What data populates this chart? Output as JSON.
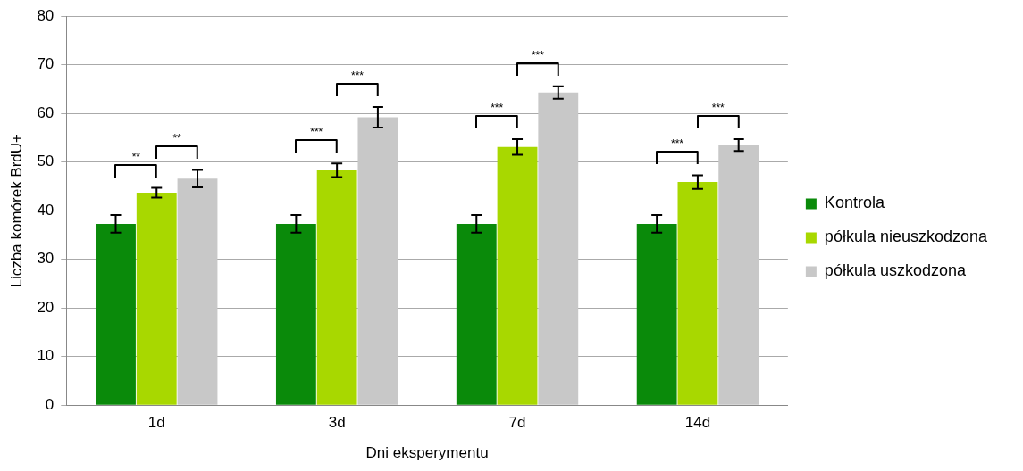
{
  "chart_data": {
    "type": "bar",
    "categories": [
      "1d",
      "3d",
      "7d",
      "14d"
    ],
    "series": [
      {
        "name": "Kontrola",
        "color": "#0a8a0a",
        "values": [
          37.3,
          37.3,
          37.3,
          37.3
        ],
        "errors": [
          1.8,
          1.8,
          1.8,
          1.8
        ]
      },
      {
        "name": "półkula nieuszkodzona",
        "color": "#a8d800",
        "values": [
          43.7,
          48.3,
          53.1,
          45.9
        ],
        "errors": [
          1.0,
          1.4,
          1.6,
          1.4
        ]
      },
      {
        "name": "półkula uszkodzona",
        "color": "#c8c8c8",
        "values": [
          46.6,
          59.2,
          64.3,
          53.5
        ],
        "errors": [
          1.8,
          2.1,
          1.3,
          1.2
        ]
      }
    ],
    "xlabel": "Dni eksperymentu",
    "ylabel": "Liczba komórek BrdU+",
    "ylim": [
      0,
      80
    ],
    "yticks": [
      0,
      10,
      20,
      30,
      40,
      50,
      60,
      70,
      80
    ],
    "grid": "y",
    "legend": "right",
    "annotations": [
      "**",
      "**",
      "***",
      "***",
      "***",
      "***",
      "***",
      "***"
    ]
  }
}
